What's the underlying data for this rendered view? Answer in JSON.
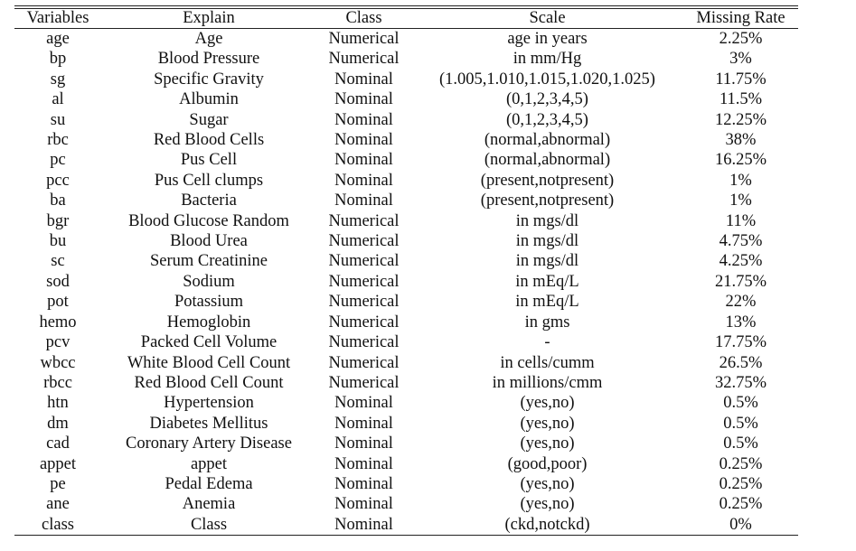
{
  "headers": {
    "variables": "Variables",
    "explain": "Explain",
    "class": "Class",
    "scale": "Scale",
    "missing_rate": "Missing Rate"
  },
  "rows": [
    [
      "age",
      "Age",
      "Numerical",
      "age in years",
      "2.25%"
    ],
    [
      "bp",
      "Blood Pressure",
      "Numerical",
      "in mm/Hg",
      "3%"
    ],
    [
      "sg",
      "Specific Gravity",
      "Nominal",
      "(1.005,1.010,1.015,1.020,1.025)",
      "11.75%"
    ],
    [
      "al",
      "Albumin",
      "Nominal",
      "(0,1,2,3,4,5)",
      "11.5%"
    ],
    [
      "su",
      "Sugar",
      "Nominal",
      "(0,1,2,3,4,5)",
      "12.25%"
    ],
    [
      "rbc",
      "Red Blood Cells",
      "Nominal",
      "(normal,abnormal)",
      "38%"
    ],
    [
      "pc",
      "Pus Cell",
      "Nominal",
      "(normal,abnormal)",
      "16.25%"
    ],
    [
      "pcc",
      "Pus Cell clumps",
      "Nominal",
      "(present,notpresent)",
      "1%"
    ],
    [
      "ba",
      "Bacteria",
      "Nominal",
      "(present,notpresent)",
      "1%"
    ],
    [
      "bgr",
      "Blood Glucose Random",
      "Numerical",
      "in mgs/dl",
      "11%"
    ],
    [
      "bu",
      "Blood Urea",
      "Numerical",
      "in mgs/dl",
      "4.75%"
    ],
    [
      "sc",
      "Serum Creatinine",
      "Numerical",
      "in mgs/dl",
      "4.25%"
    ],
    [
      "sod",
      "Sodium",
      "Numerical",
      "in mEq/L",
      "21.75%"
    ],
    [
      "pot",
      "Potassium",
      "Numerical",
      "in mEq/L",
      "22%"
    ],
    [
      "hemo",
      "Hemoglobin",
      "Numerical",
      "in gms",
      "13%"
    ],
    [
      "pcv",
      "Packed Cell Volume",
      "Numerical",
      "-",
      "17.75%"
    ],
    [
      "wbcc",
      "White Blood Cell Count",
      "Numerical",
      "in cells/cumm",
      "26.5%"
    ],
    [
      "rbcc",
      "Red Blood Cell Count",
      "Numerical",
      "in millions/cmm",
      "32.75%"
    ],
    [
      "htn",
      "Hypertension",
      "Nominal",
      "(yes,no)",
      "0.5%"
    ],
    [
      "dm",
      "Diabetes Mellitus",
      "Nominal",
      "(yes,no)",
      "0.5%"
    ],
    [
      "cad",
      "Coronary Artery Disease",
      "Nominal",
      "(yes,no)",
      "0.5%"
    ],
    [
      "appet",
      "appet",
      "Nominal",
      "(good,poor)",
      "0.25%"
    ],
    [
      "pe",
      "Pedal Edema",
      "Nominal",
      "(yes,no)",
      "0.25%"
    ],
    [
      "ane",
      "Anemia",
      "Nominal",
      "(yes,no)",
      "0.25%"
    ],
    [
      "class",
      "Class",
      "Nominal",
      "(ckd,notckd)",
      "0%"
    ]
  ]
}
